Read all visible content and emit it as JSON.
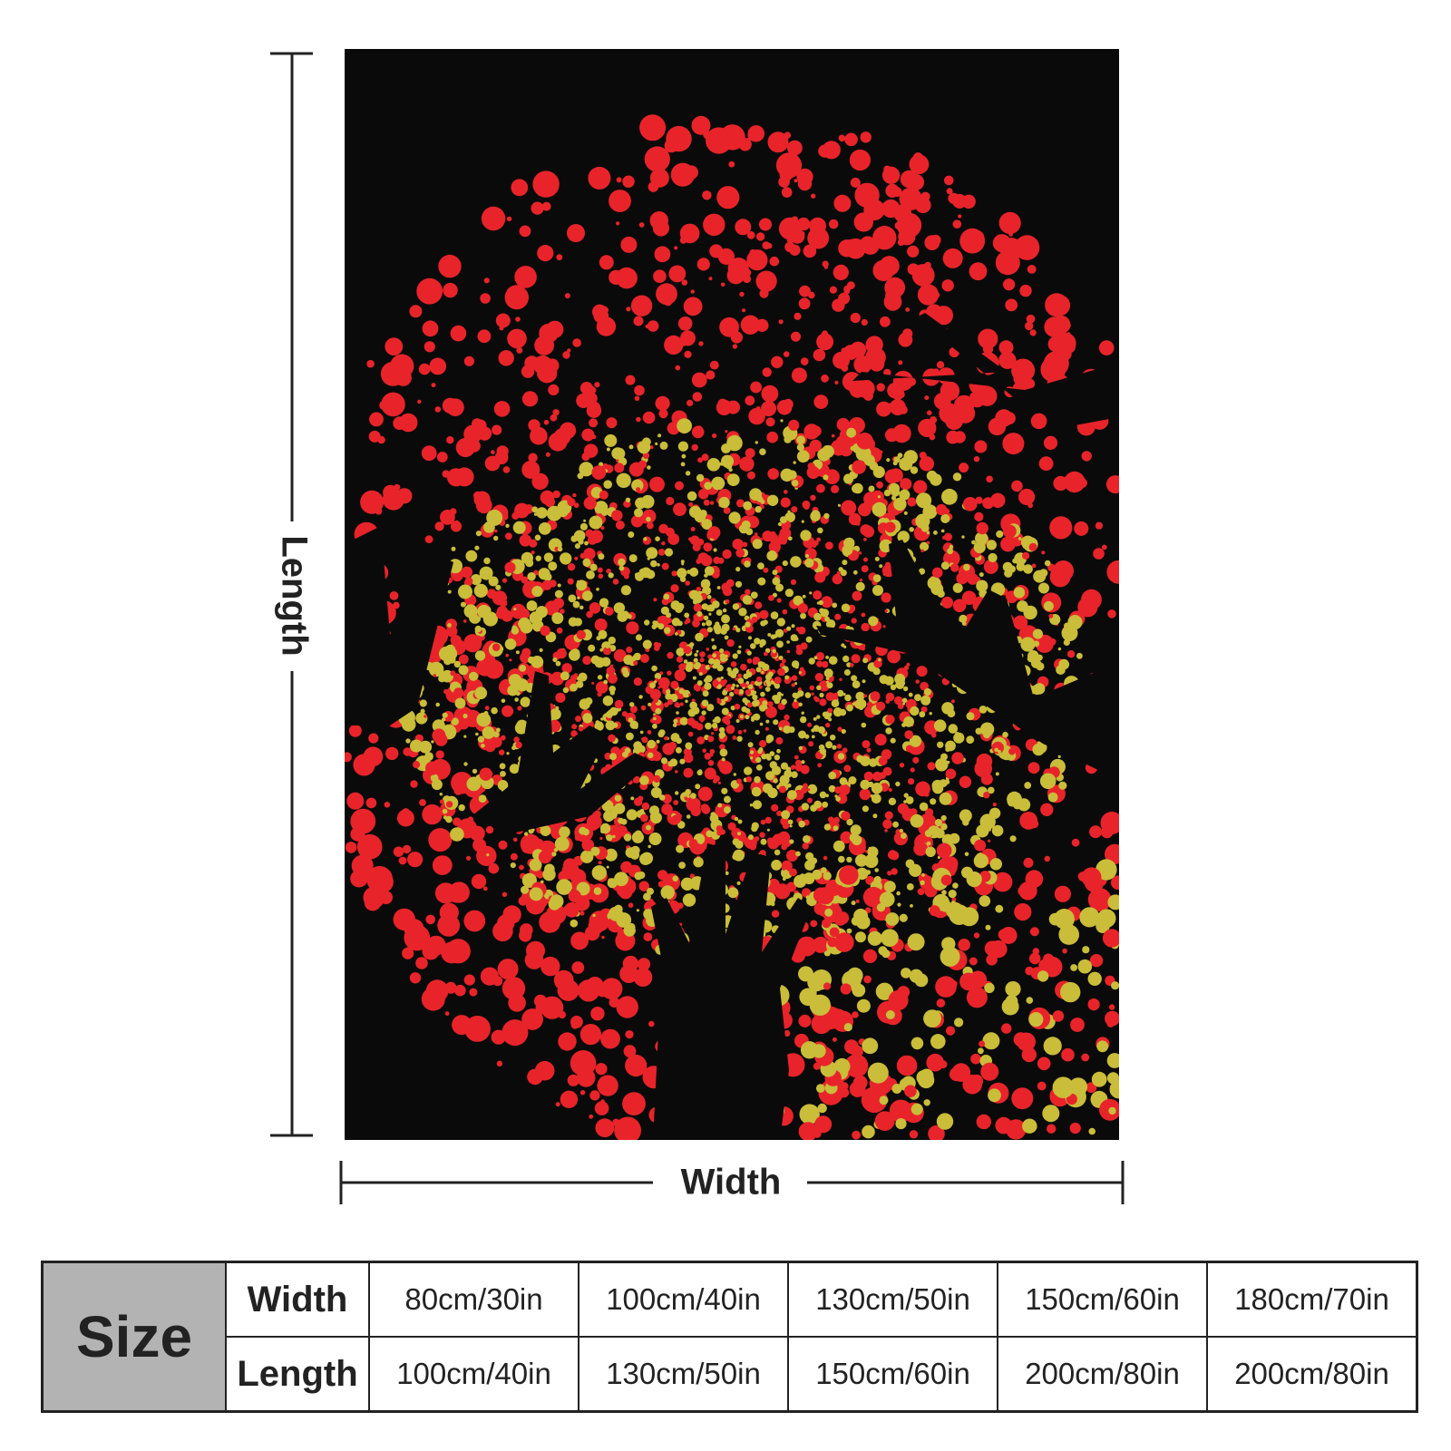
{
  "dimensions": {
    "length": "Length",
    "width": "Width"
  },
  "table": {
    "corner": "Size",
    "rows": [
      [
        "Width",
        "80cm/30in",
        "100cm/40in",
        "130cm/50in",
        "150cm/60in",
        "180cm/70in"
      ],
      [
        "Length",
        "100cm/40in",
        "130cm/50in",
        "150cm/60in",
        "200cm/80in",
        "200cm/80in"
      ]
    ]
  }
}
